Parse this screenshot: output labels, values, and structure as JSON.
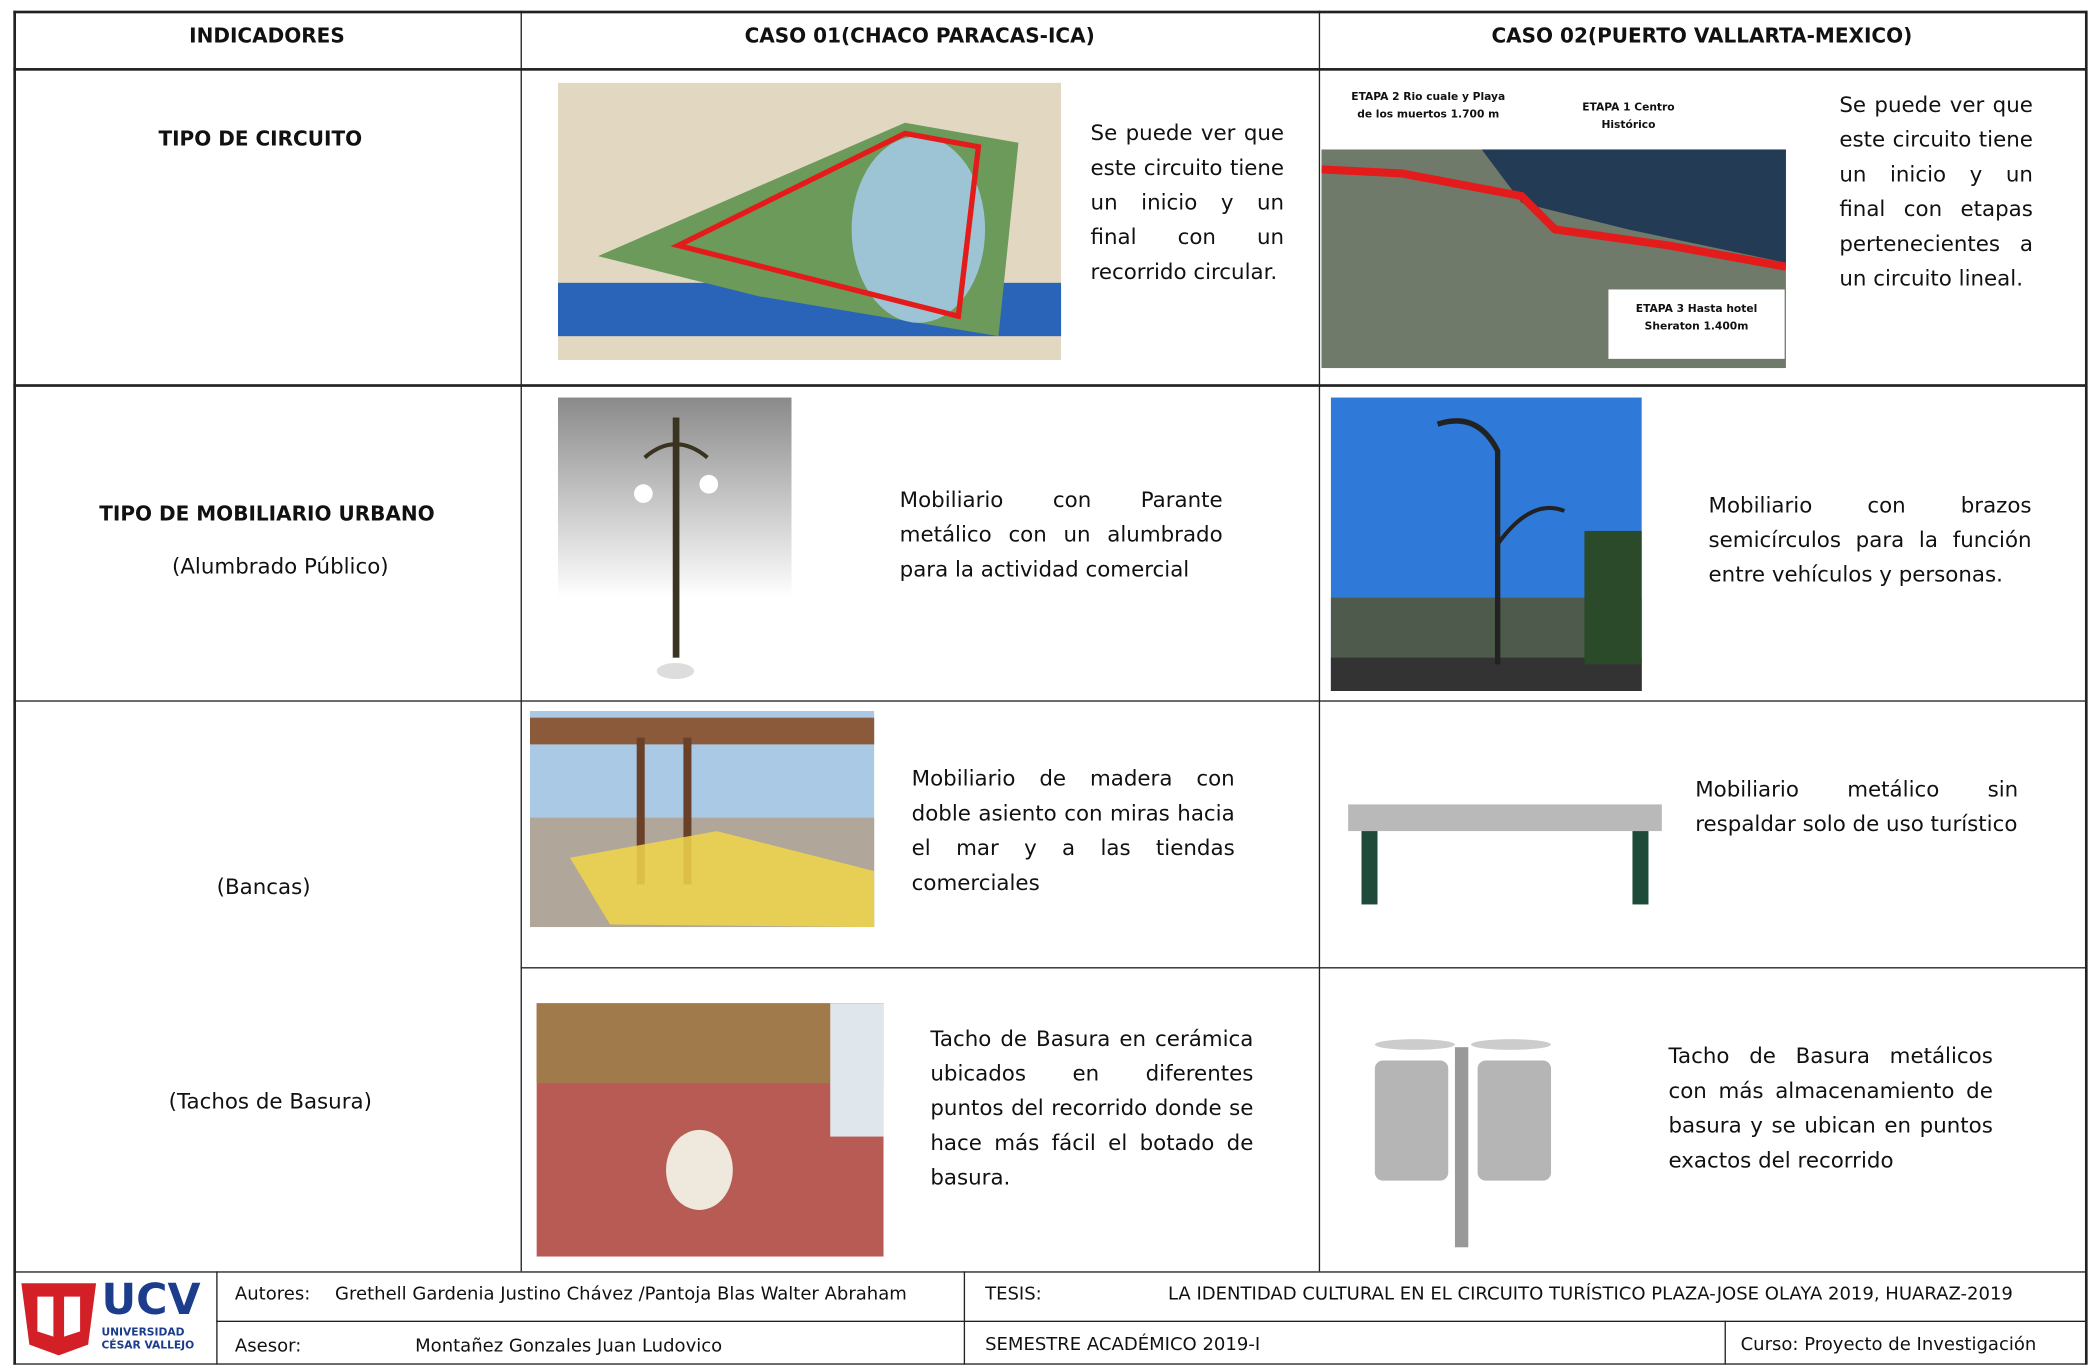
{
  "header": {
    "columns": [
      "INDICADORES",
      "CASO 01(CHACO PARACAS-ICA)",
      "CASO 02(PUERTO VALLARTA-MEXICO)"
    ]
  },
  "rows": [
    {
      "indicator": "TIPO DE CIRCUITO",
      "case1": "Se puede ver que este circuito tiene un inicio y un final con un recorrido circular.",
      "case2": "Se puede ver que este circuito tiene un inicio y un final con etapas pertenecientes a un circuito lineal.",
      "map_labels": [
        "ETAPA 2 Rio cuale y Playa de los muertos 1.700 m",
        "ETAPA 1 Centro Histórico",
        "ETAPA 3 Hasta hotel Sheraton 1.400m"
      ]
    },
    {
      "indicator": "TIPO DE MOBILIARIO URBANO",
      "subindicator": "(Alumbrado Público)",
      "case1": "Mobiliario con Parante metálico con un alumbrado para la actividad comercial",
      "case2": "Mobiliario con brazos semicírculos para la función entre vehículos y personas."
    },
    {
      "subindicator": "(Bancas)",
      "case1": "Mobiliario de madera con doble asiento con miras hacia el mar y a las tiendas comerciales",
      "case2": "Mobiliario metálico sin respaldar solo de uso turístico"
    },
    {
      "subindicator": "(Tachos de Basura)",
      "case1": "Tacho de Basura en cerámica ubicados en diferentes puntos del recorrido donde se hace más fácil el botado de basura.",
      "case2": "Tacho de Basura metálicos con más almacenamiento de basura y se ubican en puntos exactos del recorrido"
    }
  ],
  "footer": {
    "logo": "UCV",
    "university": [
      "UNIVERSIDAD",
      "CÉSAR VALLEJO"
    ],
    "authors_label": "Autores:",
    "authors": "Grethell Gardenia Justino Chávez /Pantoja Blas Walter Abraham",
    "advisor_label": "Asesor:",
    "advisor": "Montañez Gonzales Juan Ludovico",
    "thesis_label": "TESIS:",
    "thesis": "LA IDENTIDAD CULTURAL EN EL CIRCUITO TURÍSTICO PLAZA-JOSE OLAYA 2019, HUARAZ-2019",
    "semester": "SEMESTRE ACADÉMICO 2019-I",
    "course": "Curso: Proyecto de Investigación"
  }
}
